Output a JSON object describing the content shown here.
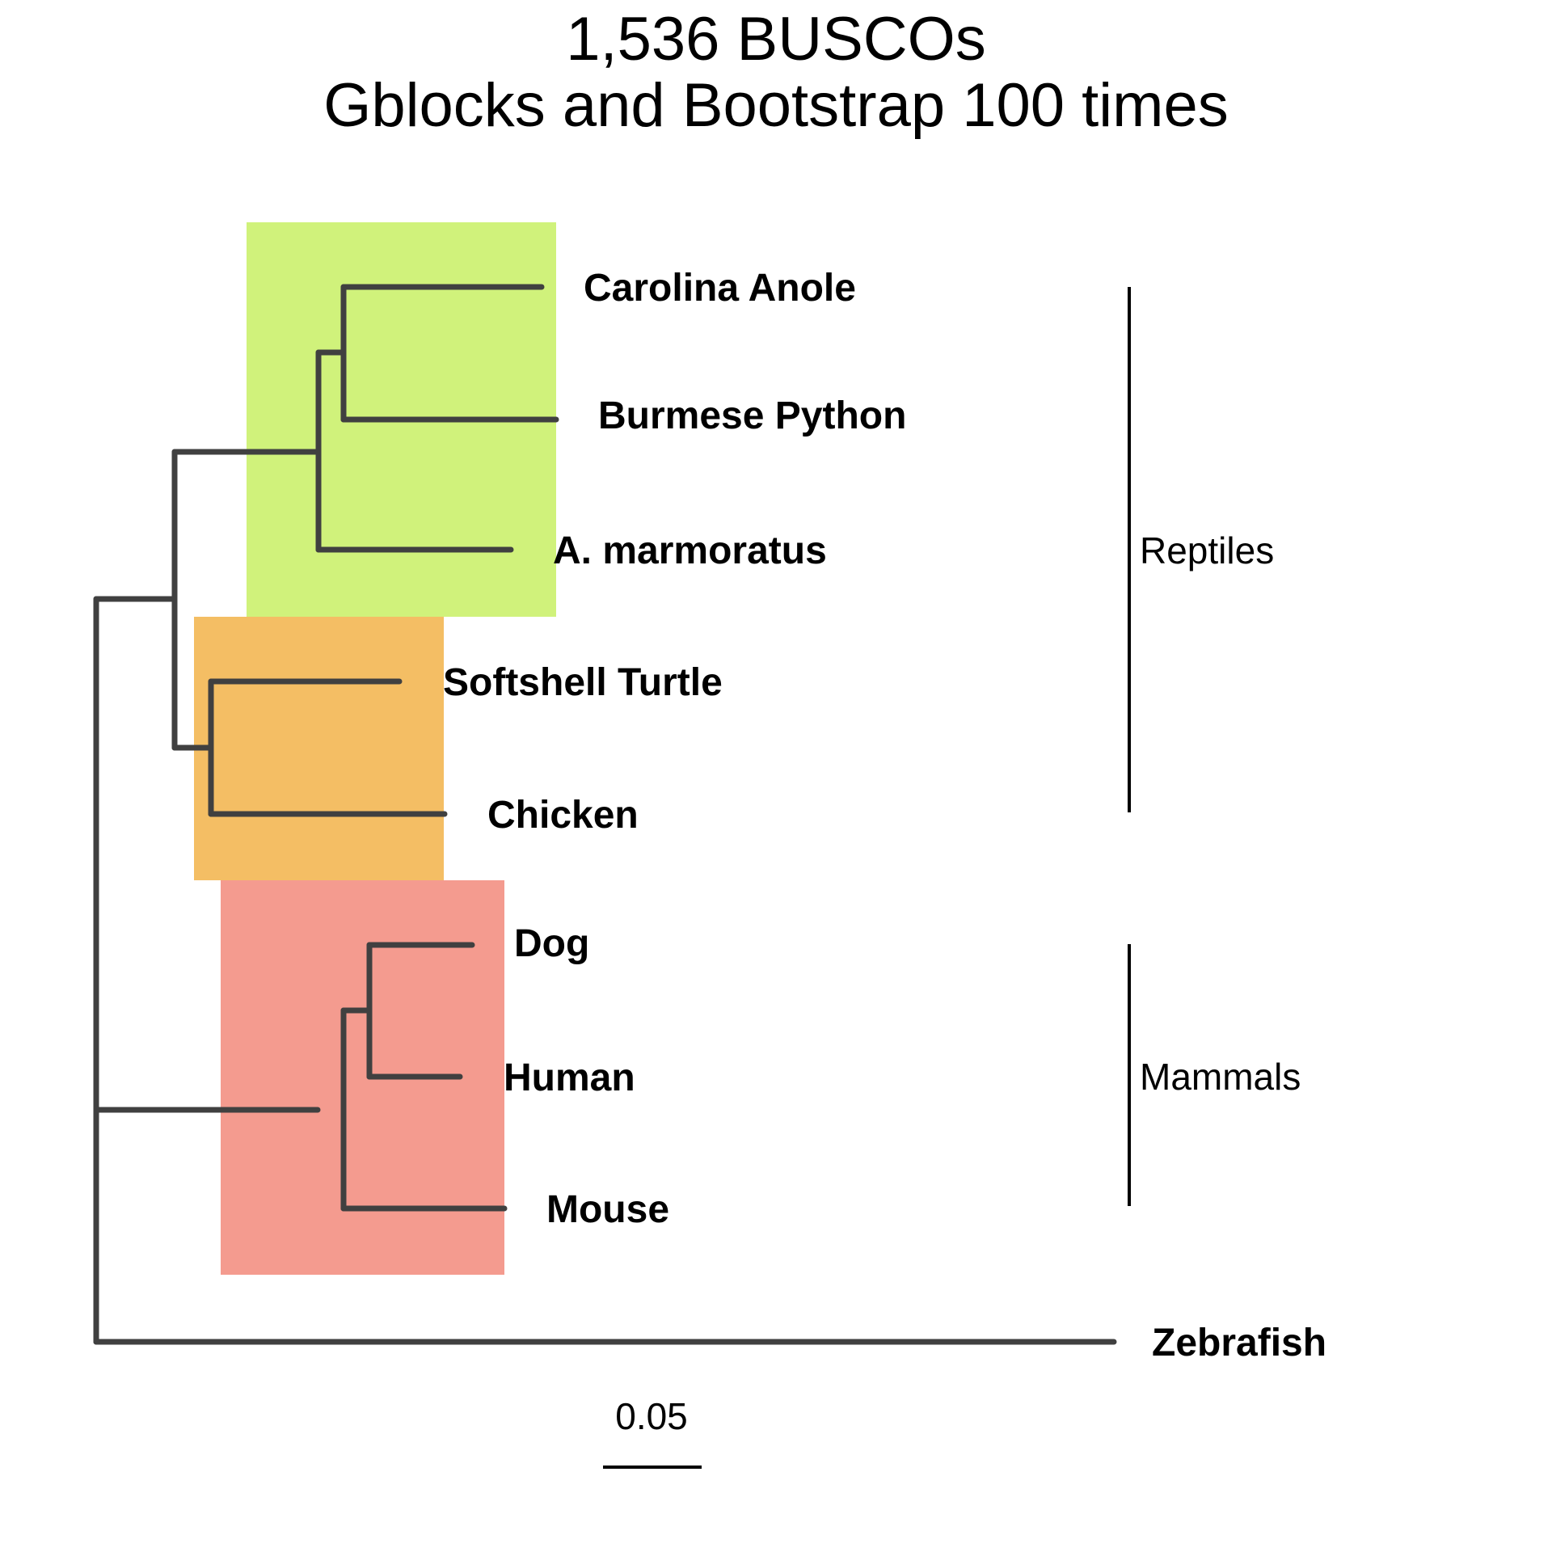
{
  "title": {
    "line1": "1,536 BUSCOs",
    "line2": "Gblocks and Bootstrap 100 times"
  },
  "tips": {
    "carolina_anole": "Carolina Anole",
    "burmese_python": "Burmese Python",
    "a_marmoratus": "A. marmoratus",
    "softshell_turtle": "Softshell Turtle",
    "chicken": "Chicken",
    "dog": "Dog",
    "human": "Human",
    "mouse": "Mouse",
    "zebrafish": "Zebrafish"
  },
  "groups": {
    "reptiles": "Reptiles",
    "mammals": "Mammals"
  },
  "scale_bar": {
    "label": "0.05"
  },
  "clade_colors": {
    "squamates": "#c8f064",
    "archelosaurs": "#f0a830",
    "mammals": "#f07060"
  },
  "branch_color": "#404040"
}
